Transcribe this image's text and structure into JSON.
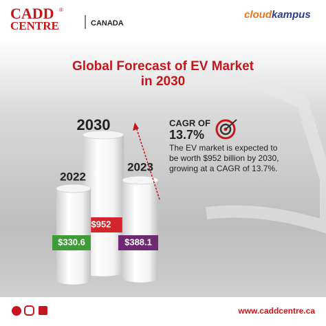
{
  "header": {
    "brand_top": "CADD",
    "brand_bottom": "CENTRE",
    "registered": "®",
    "region": "CANADA",
    "partner_part1": "cloud",
    "partner_part2": "kampus"
  },
  "title": {
    "line1": "Global Forecast of EV Market",
    "line2": "in 2030"
  },
  "columns": [
    {
      "year": "2022",
      "value": "$330.6",
      "color": "#3f9a3a"
    },
    {
      "year": "2030",
      "value": "$952",
      "color": "#d3262c"
    },
    {
      "year": "2023",
      "value": "$388.1",
      "color": "#6d2a73"
    }
  ],
  "cagr": {
    "label": "CAGR OF",
    "value": "13.7%",
    "text": [
      "The EV market is expected to",
      "be worth $952 billion by 2030,",
      "growing at a CAGR of 13.7%."
    ]
  },
  "footer": {
    "website": "www.caddcentre.ca"
  }
}
